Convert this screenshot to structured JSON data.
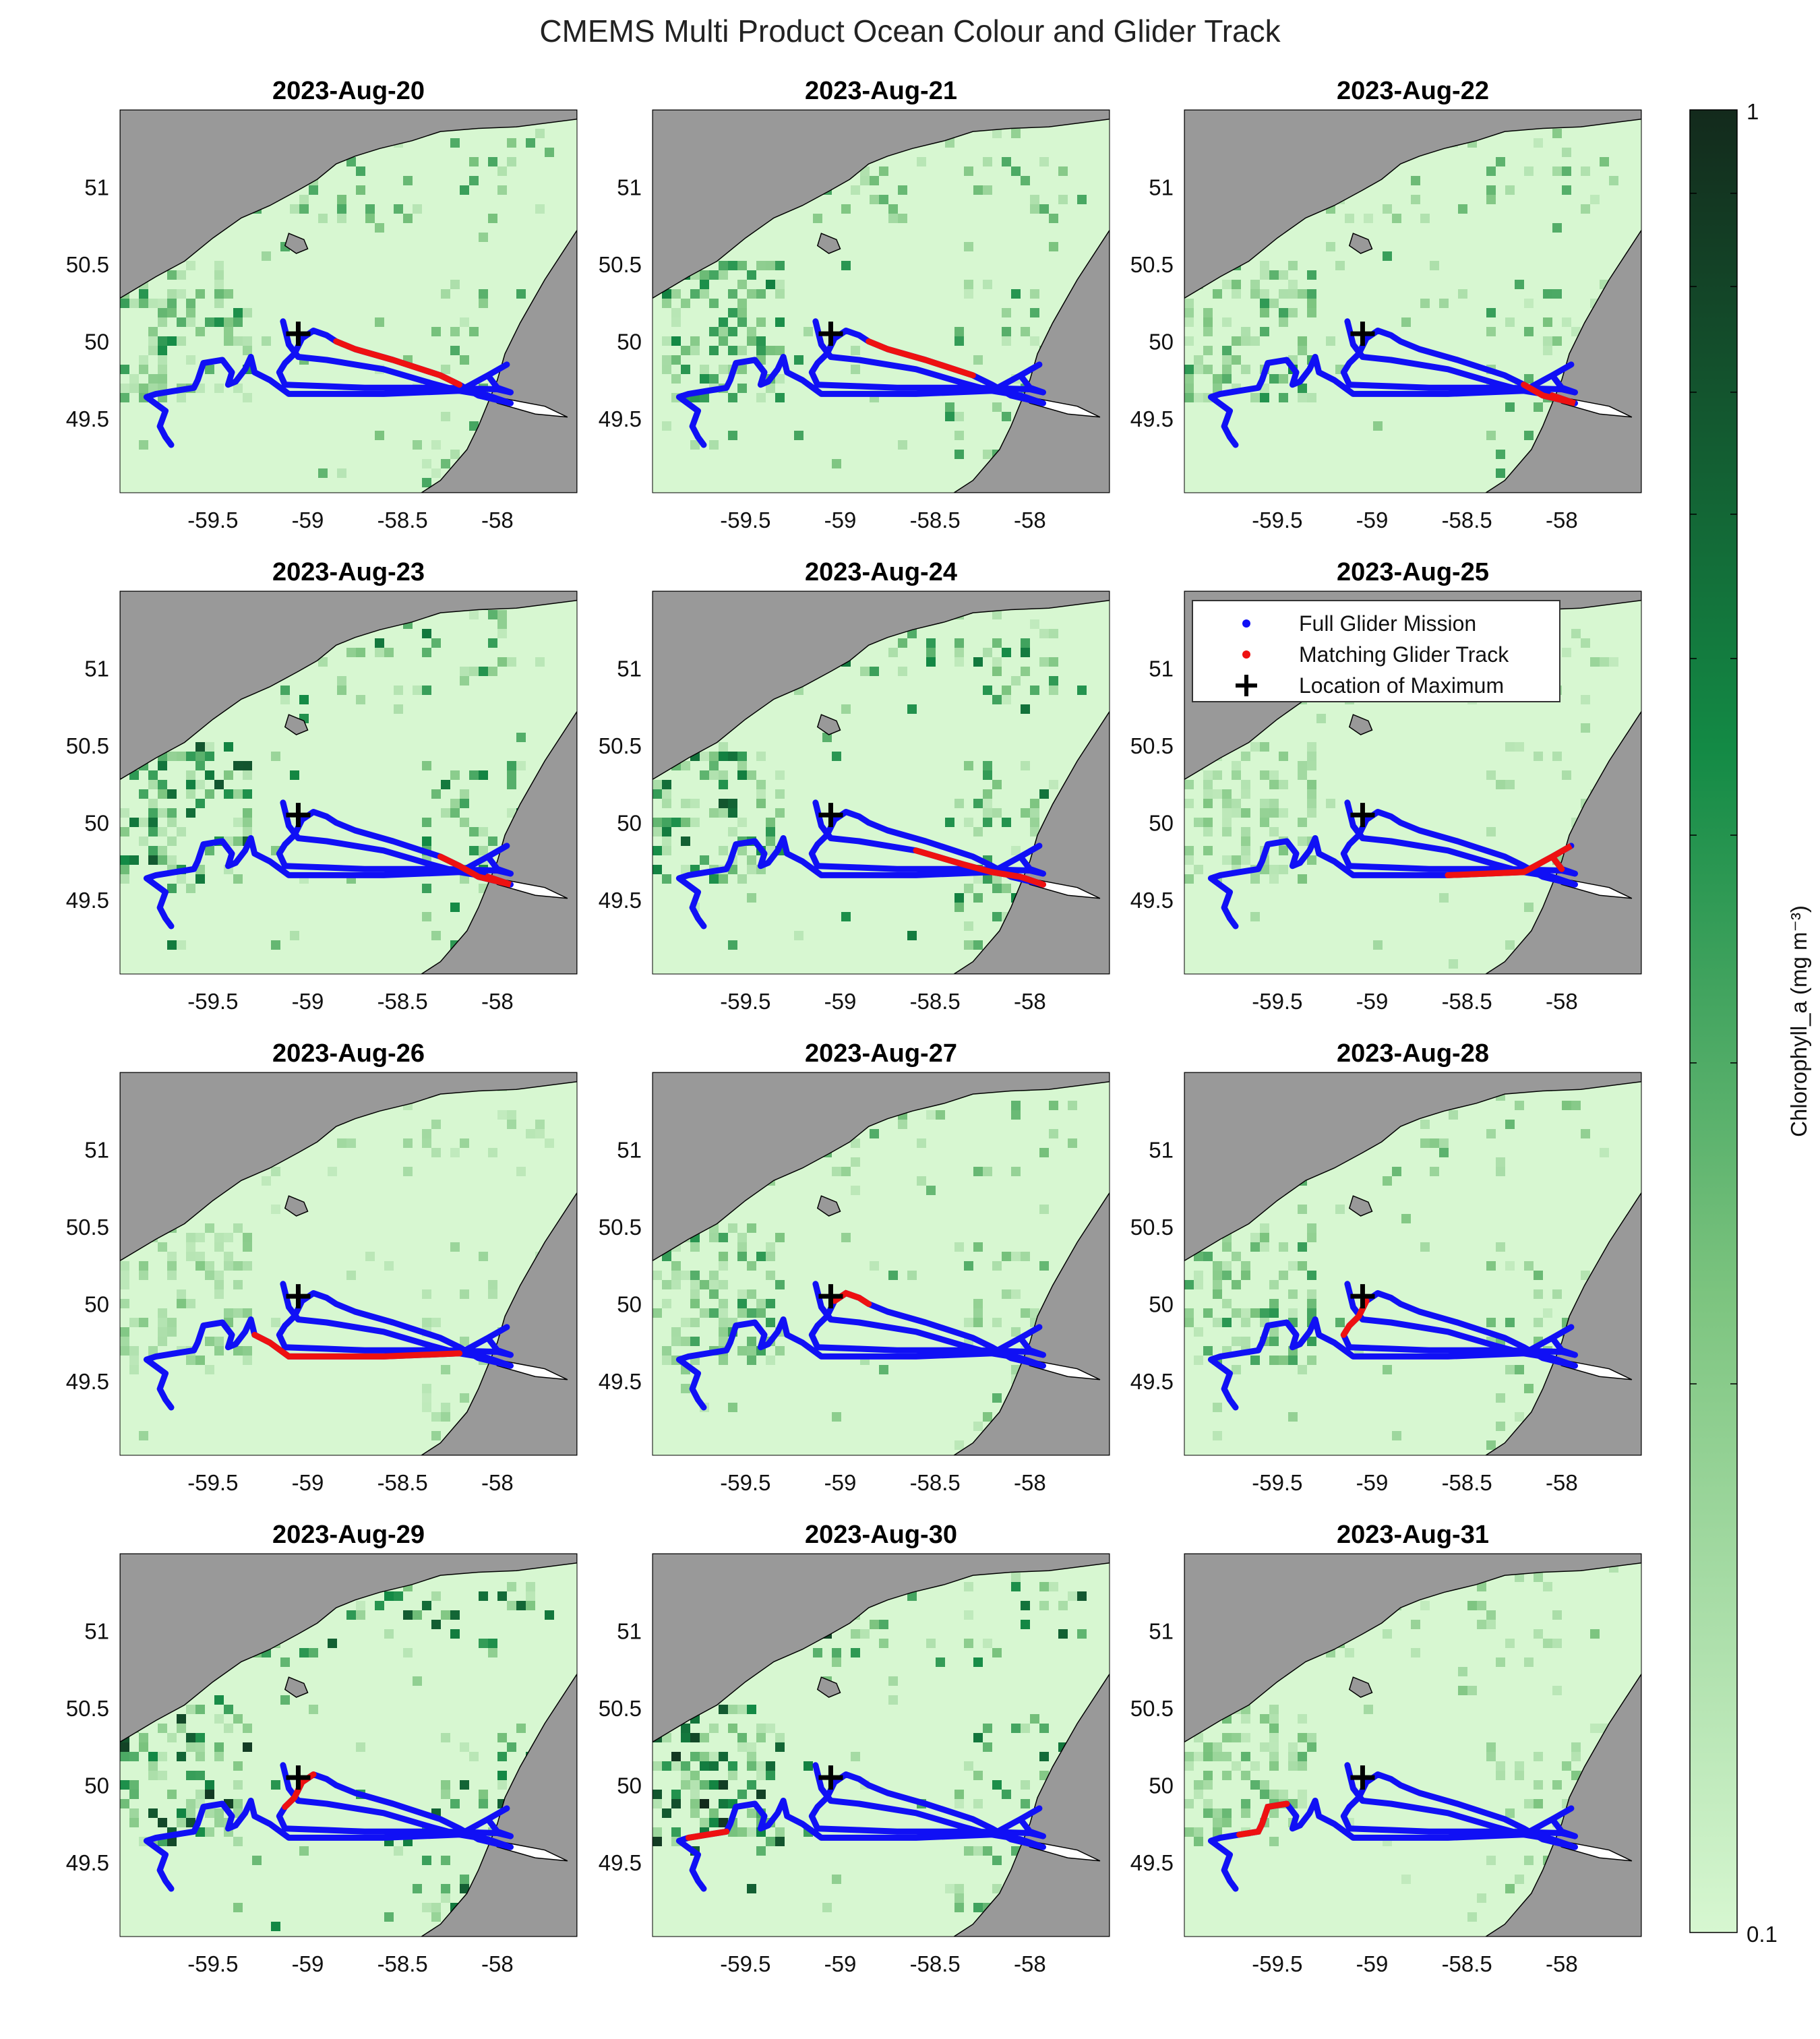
{
  "figure": {
    "title": "CMEMS Multi Product Ocean Colour and Glider Track"
  },
  "colors": {
    "land": "#999999",
    "water_low": "#d7f7d1",
    "water_high": "#132a1c",
    "glider_full": "#1010f5",
    "glider_match": "#ee1111",
    "max_marker": "#000000",
    "coast_line": "#000000",
    "no_data": "#ffffff"
  },
  "legend": {
    "panel": "2023-Aug-25",
    "entries": [
      {
        "label": "Full Glider Mission",
        "marker": "blue-dot-icon"
      },
      {
        "label": "Matching Glider Track",
        "marker": "red-dot-icon"
      },
      {
        "label": "Location of Maximum",
        "marker": "black-plus-icon"
      }
    ]
  },
  "chart_data": {
    "type": "heatmap",
    "subplots": [
      "2023-Aug-20",
      "2023-Aug-21",
      "2023-Aug-22",
      "2023-Aug-23",
      "2023-Aug-24",
      "2023-Aug-25",
      "2023-Aug-26",
      "2023-Aug-27",
      "2023-Aug-28",
      "2023-Aug-29",
      "2023-Aug-30",
      "2023-Aug-31"
    ],
    "xticks": [
      "-59.5",
      "-59",
      "-58.5",
      "-58"
    ],
    "xtick_values": [
      -59.5,
      -59,
      -58.5,
      -58
    ],
    "yticks": [
      "51",
      "50.5",
      "50",
      "49.5"
    ],
    "ytick_values": [
      51,
      50.5,
      50,
      49.5
    ],
    "xlim": [
      -59.99,
      -57.58
    ],
    "ylim": [
      49.02,
      51.5
    ],
    "colorbar": {
      "label": "Chlorophyll_a (mg m⁻³)",
      "min_label": "0.1",
      "max_label": "1",
      "range": [
        0.1,
        1
      ],
      "scale": "log"
    },
    "max_location": [
      -59.05,
      50.05
    ],
    "glider_track": [
      [
        -59.13,
        50.13
      ],
      [
        -59.1,
        49.98
      ],
      [
        -59.05,
        49.9
      ],
      [
        -58.9,
        49.88
      ],
      [
        -58.6,
        49.82
      ],
      [
        -58.35,
        49.73
      ],
      [
        -58.2,
        49.68
      ],
      [
        -58.05,
        49.65
      ],
      [
        -57.93,
        49.6
      ],
      [
        -58.1,
        49.65
      ],
      [
        -58.2,
        49.72
      ],
      [
        -58.3,
        49.78
      ],
      [
        -58.55,
        49.88
      ],
      [
        -58.75,
        49.95
      ],
      [
        -58.85,
        50.0
      ],
      [
        -58.9,
        50.04
      ],
      [
        -58.97,
        50.07
      ],
      [
        -59.03,
        50.02
      ],
      [
        -59.07,
        49.92
      ],
      [
        -59.12,
        49.86
      ],
      [
        -59.15,
        49.8
      ],
      [
        -59.12,
        49.72
      ],
      [
        -58.9,
        49.71
      ],
      [
        -58.7,
        49.7
      ],
      [
        -58.3,
        49.7
      ],
      [
        -58.0,
        49.69
      ],
      [
        -57.93,
        49.67
      ],
      [
        -58.0,
        49.7
      ],
      [
        -58.05,
        49.78
      ],
      [
        -57.95,
        49.85
      ],
      [
        -58.05,
        49.78
      ],
      [
        -58.2,
        49.68
      ],
      [
        -58.6,
        49.66
      ],
      [
        -59.1,
        49.66
      ],
      [
        -59.2,
        49.75
      ],
      [
        -59.28,
        49.8
      ],
      [
        -59.3,
        49.9
      ],
      [
        -59.33,
        49.82
      ],
      [
        -59.38,
        49.74
      ],
      [
        -59.42,
        49.72
      ],
      [
        -59.4,
        49.8
      ],
      [
        -59.45,
        49.88
      ],
      [
        -59.55,
        49.86
      ],
      [
        -59.58,
        49.75
      ],
      [
        -59.6,
        49.7
      ],
      [
        -59.7,
        49.68
      ],
      [
        -59.8,
        49.66
      ],
      [
        -59.85,
        49.64
      ],
      [
        -59.75,
        49.55
      ],
      [
        -59.78,
        49.45
      ],
      [
        -59.75,
        49.38
      ],
      [
        -59.72,
        49.33
      ]
    ],
    "matching_segments": {
      "2023-Aug-20": [
        10,
        14
      ],
      "2023-Aug-21": [
        11,
        14
      ],
      "2023-Aug-22": [
        7,
        10
      ],
      "2023-Aug-23": [
        7,
        11
      ],
      "2023-Aug-24": [
        4,
        8
      ],
      "2023-Aug-25": [
        27,
        32
      ],
      "2023-Aug-26": [
        31,
        35
      ],
      "2023-Aug-27": [
        14,
        17
      ],
      "2023-Aug-28": [
        17,
        20
      ],
      "2023-Aug-29": [
        16,
        19
      ],
      "2023-Aug-30": [
        44,
        46
      ],
      "2023-Aug-31": [
        41,
        45
      ]
    }
  }
}
